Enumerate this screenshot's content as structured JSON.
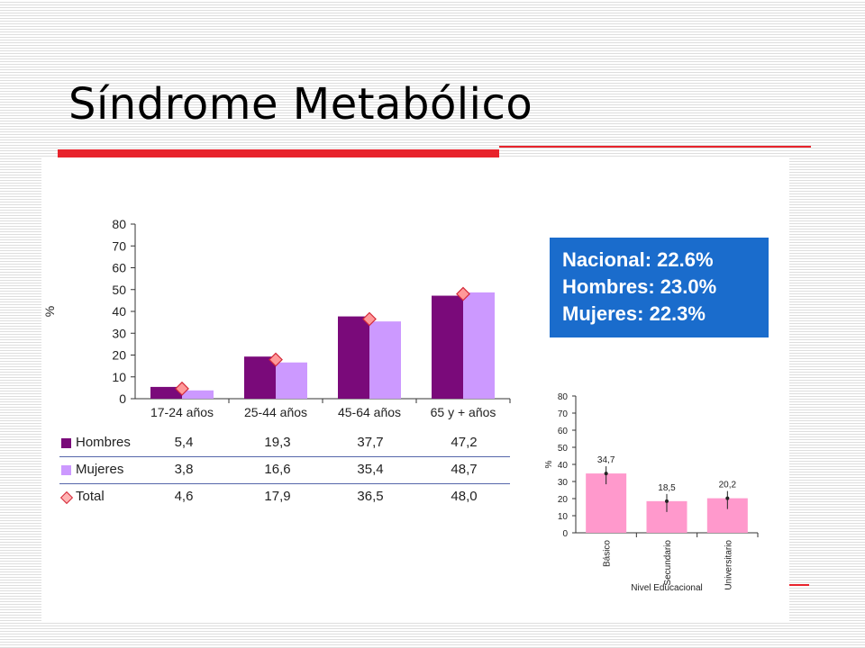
{
  "title": "Síndrome Metabólico",
  "colors": {
    "accent_red": "#e8232c",
    "info_box": "#1a6ccc",
    "hombres": "#7a0a7a",
    "mujeres": "#cc99ff",
    "total_marker": "#ff9999",
    "secondary_bars": "#ff99cc"
  },
  "info_box": {
    "lines": [
      "Nacional: 22.6%",
      "Hombres: 23.0%",
      "Mujeres: 22.3%"
    ]
  },
  "chart_data": [
    {
      "type": "bar",
      "categories": [
        "17-24 años",
        "25-44 años",
        "45-64 años",
        "65 y + años"
      ],
      "series": [
        {
          "name": "Hombres",
          "values": [
            5.4,
            19.3,
            37.7,
            47.2
          ]
        },
        {
          "name": "Mujeres",
          "values": [
            3.8,
            16.6,
            35.4,
            48.7
          ]
        },
        {
          "name": "Total",
          "values": [
            4.6,
            17.9,
            36.5,
            48.0
          ],
          "marker": "diamond"
        }
      ],
      "value_labels": {
        "Hombres": [
          "5,4",
          "19,3",
          "37,7",
          "47,2"
        ],
        "Mujeres": [
          "3,8",
          "16,6",
          "35,4",
          "48,7"
        ],
        "Total": [
          "4,6",
          "17,9",
          "36,5",
          "48,0"
        ]
      },
      "ylabel": "%",
      "ylim": [
        0,
        80
      ],
      "yticks": [
        0,
        10,
        20,
        30,
        40,
        50,
        60,
        70,
        80
      ],
      "legend": "data table below chart"
    },
    {
      "type": "bar",
      "categories": [
        "Básico",
        "Secundario",
        "Universitario"
      ],
      "values": [
        34.7,
        18.5,
        20.2
      ],
      "value_labels": [
        "34,7",
        "18,5",
        "20,2"
      ],
      "error_bars": true,
      "xlabel": "Nivel Educacional",
      "ylabel": "%",
      "ylim": [
        0,
        80
      ],
      "yticks": [
        0,
        10,
        20,
        30,
        40,
        50,
        60,
        70,
        80
      ]
    }
  ]
}
